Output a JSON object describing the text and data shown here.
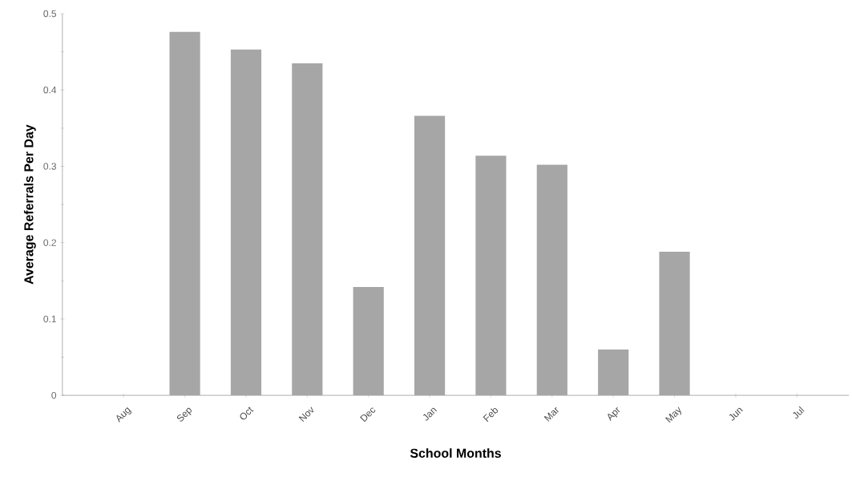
{
  "chart_data": {
    "type": "bar",
    "xlabel": "School Months",
    "ylabel": "Average Referrals Per Day",
    "categories": [
      "Aug",
      "Sep",
      "Oct",
      "Nov",
      "Dec",
      "Jan",
      "Feb",
      "Mar",
      "Apr",
      "May",
      "Jun",
      "Jul"
    ],
    "values": [
      0,
      0.476,
      0.453,
      0.435,
      0.142,
      0.366,
      0.314,
      0.302,
      0.06,
      0.188,
      0,
      0
    ],
    "color": "#a6a6a6",
    "ylim": [
      0,
      0.5
    ],
    "yticks": [
      0,
      0.1,
      0.2,
      0.3,
      0.4,
      0.5
    ]
  }
}
